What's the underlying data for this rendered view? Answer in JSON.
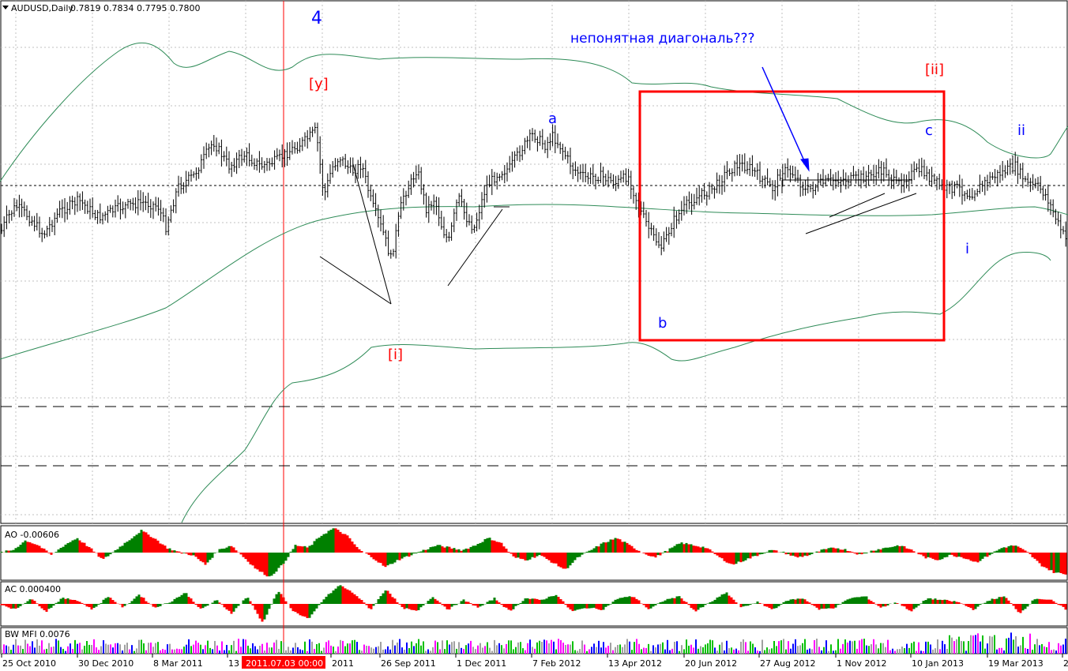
{
  "colors": {
    "candle": "#000000",
    "band": "#2e8b57",
    "box": "#ff0000",
    "vline": "#ff0000",
    "grid": "#c0c0c0",
    "wave_blue": "#0000ff",
    "wave_red": "#ff0000",
    "bar_up": "#008000",
    "bar_down": "#ff0000",
    "mfi": [
      "#0000ff",
      "#00c000",
      "#a0a0a0",
      "#ff00ff"
    ]
  },
  "chart_data": [
    {
      "type": "candlestick",
      "symbol": "AUDUSD,Daily",
      "ohlc_label": "0.7819 0.7834 0.7795 0.7800",
      "x_ticks": [
        "25 Oct 2010",
        "30 Dec 2010",
        "8 Mar 2011",
        "13",
        "2011.07.03 00:00",
        "2011",
        "26 Sep 2011",
        "1 Dec 2011",
        "7 Feb 2012",
        "13 Apr 2012",
        "20 Jun 2012",
        "27 Aug 2012",
        "1 Nov 2012",
        "10 Jan 2013",
        "19 Mar 2013",
        "2"
      ],
      "wave_labels": [
        {
          "text": "4",
          "color": "blue"
        },
        {
          "text": "[y]",
          "color": "red"
        },
        {
          "text": "[i]",
          "color": "red"
        },
        {
          "text": "a",
          "color": "blue"
        },
        {
          "text": "b",
          "color": "blue"
        },
        {
          "text": "c",
          "color": "blue"
        },
        {
          "text": "[ii]",
          "color": "red"
        },
        {
          "text": "ii",
          "color": "blue"
        },
        {
          "text": "i",
          "color": "blue"
        }
      ],
      "annotation": "непонятная диагональ???",
      "close_path": [
        [
          0,
          0.55
        ],
        [
          8,
          0.47
        ],
        [
          20,
          0.4
        ],
        [
          35,
          0.45
        ],
        [
          55,
          0.55
        ],
        [
          75,
          0.43
        ],
        [
          100,
          0.37
        ],
        [
          125,
          0.46
        ],
        [
          150,
          0.41
        ],
        [
          180,
          0.38
        ],
        [
          200,
          0.4
        ],
        [
          210,
          0.51
        ],
        [
          225,
          0.3
        ],
        [
          245,
          0.24
        ],
        [
          270,
          0.06
        ],
        [
          290,
          0.19
        ],
        [
          310,
          0.13
        ],
        [
          330,
          0.19
        ],
        [
          350,
          0.16
        ],
        [
          370,
          0.1
        ],
        [
          385,
          0.06
        ],
        [
          400,
          0.0
        ],
        [
          410,
          0.35
        ],
        [
          420,
          0.2
        ],
        [
          430,
          0.14
        ],
        [
          445,
          0.22
        ],
        [
          458,
          0.18
        ],
        [
          470,
          0.38
        ],
        [
          485,
          0.54
        ],
        [
          495,
          0.68
        ],
        [
          510,
          0.35
        ],
        [
          520,
          0.28
        ],
        [
          528,
          0.2
        ],
        [
          540,
          0.42
        ],
        [
          550,
          0.36
        ],
        [
          560,
          0.52
        ],
        [
          568,
          0.59
        ],
        [
          580,
          0.35
        ],
        [
          590,
          0.46
        ],
        [
          600,
          0.52
        ],
        [
          615,
          0.3
        ],
        [
          630,
          0.23
        ],
        [
          645,
          0.2
        ],
        [
          660,
          0.1
        ],
        [
          675,
          0.02
        ],
        [
          690,
          0.08
        ],
        [
          700,
          0.03
        ],
        [
          710,
          0.09
        ],
        [
          725,
          0.2
        ],
        [
          740,
          0.25
        ],
        [
          760,
          0.24
        ],
        [
          780,
          0.28
        ],
        [
          795,
          0.24
        ],
        [
          810,
          0.42
        ],
        [
          825,
          0.55
        ],
        [
          838,
          0.62
        ],
        [
          852,
          0.48
        ],
        [
          870,
          0.39
        ],
        [
          888,
          0.34
        ],
        [
          905,
          0.3
        ],
        [
          920,
          0.22
        ],
        [
          935,
          0.18
        ],
        [
          950,
          0.2
        ],
        [
          965,
          0.26
        ],
        [
          978,
          0.31
        ],
        [
          990,
          0.21
        ],
        [
          1005,
          0.23
        ],
        [
          1020,
          0.32
        ],
        [
          1040,
          0.28
        ],
        [
          1060,
          0.26
        ],
        [
          1080,
          0.26
        ],
        [
          1100,
          0.24
        ],
        [
          1120,
          0.21
        ],
        [
          1135,
          0.29
        ],
        [
          1150,
          0.24
        ],
        [
          1165,
          0.21
        ],
        [
          1180,
          0.26
        ],
        [
          1195,
          0.31
        ],
        [
          1210,
          0.3
        ],
        [
          1228,
          0.34
        ],
        [
          1240,
          0.3
        ],
        [
          1255,
          0.25
        ],
        [
          1270,
          0.22
        ],
        [
          1285,
          0.19
        ],
        [
          1300,
          0.28
        ],
        [
          1315,
          0.3
        ],
        [
          1325,
          0.35
        ],
        [
          1340,
          0.5
        ],
        [
          1352,
          0.6
        ]
      ],
      "dotted_level_price": 0.78
    },
    {
      "type": "bar",
      "indicator": "AO",
      "label": "AO -0.00606",
      "profile": [
        0,
        0.1,
        0.5,
        0.3,
        -0.1,
        0.3,
        0.6,
        0.2,
        -0.3,
        0.1,
        0.5,
        0.9,
        0.6,
        0.2,
        0,
        -0.1,
        -0.5,
        0.1,
        0.3,
        -0.2,
        -0.7,
        -1.0,
        -0.5,
        0.3,
        0.2,
        0.7,
        1.0,
        0.7,
        0.1,
        -0.2,
        -0.6,
        -0.3,
        -0.1,
        0.1,
        0.3,
        0.2,
        0.1,
        0.3,
        0.6,
        0.4,
        -0.2,
        -0.3,
        -0.1,
        -0.4,
        -0.7,
        -0.2,
        0.1,
        0.4,
        0.6,
        0.3,
        0,
        -0.2,
        0.1,
        0.4,
        0.3,
        0.2,
        -0.2,
        -0.5,
        -0.3,
        -0.1,
        0.1,
        0,
        -0.2,
        -0.1,
        0.1,
        0.2,
        0.1,
        -0.1,
        0.1,
        0.2,
        0.3,
        0.1,
        -0.2,
        -0.3,
        -0.1,
        -0.2,
        -0.4,
        -0.1,
        0.2,
        0.3,
        0,
        -0.5,
        -0.8,
        -0.9
      ]
    },
    {
      "type": "bar",
      "indicator": "AC",
      "label": "AC 0.000400",
      "profile": [
        0,
        -0.3,
        0.3,
        -0.4,
        0.3,
        0.2,
        -0.3,
        0.4,
        -0.2,
        0.5,
        -0.2,
        0.1,
        0.6,
        -0.3,
        0.2,
        -0.5,
        0.4,
        -1.0,
        0.7,
        -0.4,
        -0.8,
        0.3,
        1.0,
        0.5,
        -0.3,
        0.8,
        -0.2,
        -0.4,
        0.4,
        -0.3,
        0.2,
        -0.2,
        0.3,
        -0.4,
        0.3,
        0.2,
        0.5,
        -0.4,
        -0.2,
        -0.3,
        0.3,
        0.4,
        -0.3,
        0.2,
        0.4,
        -0.4,
        0.1,
        0.6,
        -0.2,
        0.1,
        -0.3,
        0.2,
        0.3,
        -0.3,
        -0.2,
        0.3,
        0.4,
        -0.2,
        0.1,
        -0.4,
        0.3,
        0.2,
        0.1,
        -0.3,
        0.2,
        0.4,
        -0.5,
        0.3,
        0.2,
        -0.3
      ]
    },
    {
      "type": "bar",
      "indicator": "BW MFI",
      "label": "BW MFI 0.0076"
    }
  ]
}
